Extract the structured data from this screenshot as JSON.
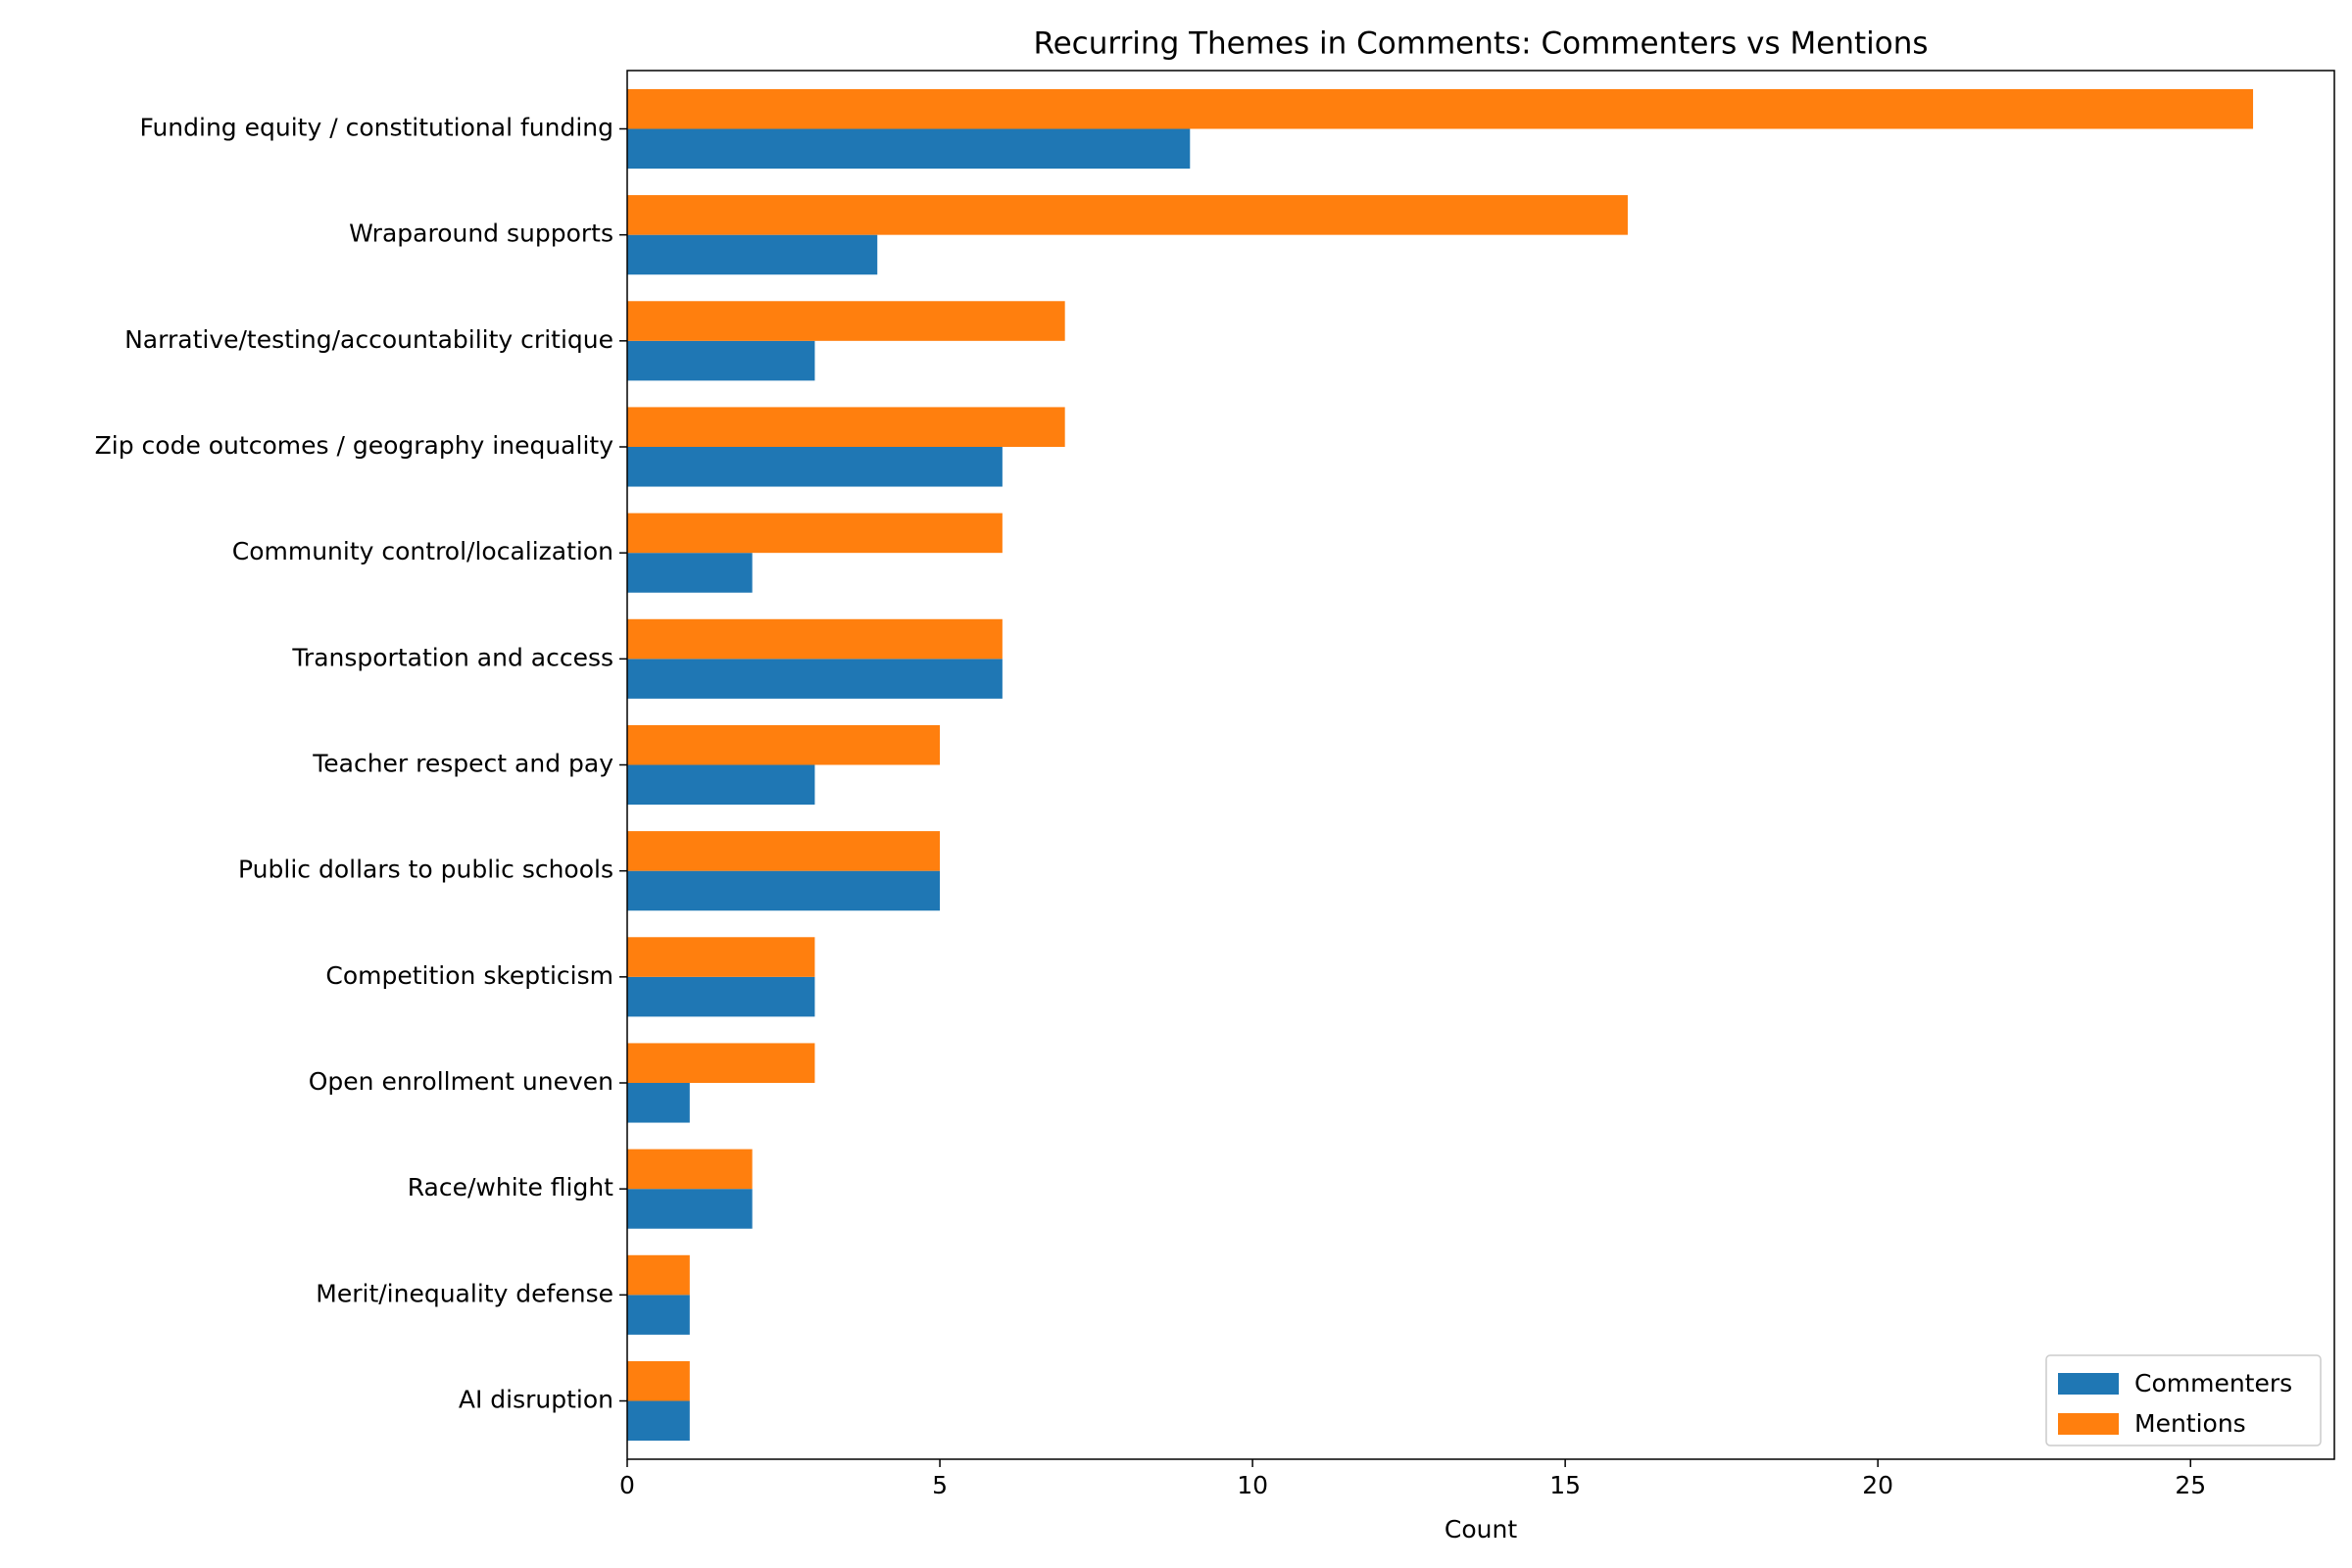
{
  "chart_data": {
    "type": "barh",
    "title": "Recurring Themes in Comments: Commenters vs Mentions",
    "xlabel": "Count",
    "categories": [
      "Funding equity / constitutional funding",
      "Wraparound supports",
      "Narrative/testing/accountability critique",
      "Zip code outcomes / geography inequality",
      "Community control/localization",
      "Transportation and access",
      "Teacher respect and pay",
      "Public dollars to public schools",
      "Competition skepticism",
      "Open enrollment uneven",
      "Race/white flight",
      "Merit/inequality defense",
      "AI disruption"
    ],
    "series": [
      {
        "name": "Commenters",
        "color": "#1f77b4",
        "values": [
          9,
          4,
          3,
          6,
          2,
          6,
          3,
          5,
          3,
          1,
          2,
          1,
          1
        ]
      },
      {
        "name": "Mentions",
        "color": "#ff7f0e",
        "values": [
          26,
          16,
          7,
          7,
          6,
          6,
          5,
          5,
          3,
          3,
          2,
          1,
          1
        ]
      }
    ],
    "xlim": [
      0,
      27.3
    ],
    "xticks": [
      0,
      5,
      10,
      15,
      20,
      25
    ],
    "grid": false,
    "legend": "lower right"
  }
}
